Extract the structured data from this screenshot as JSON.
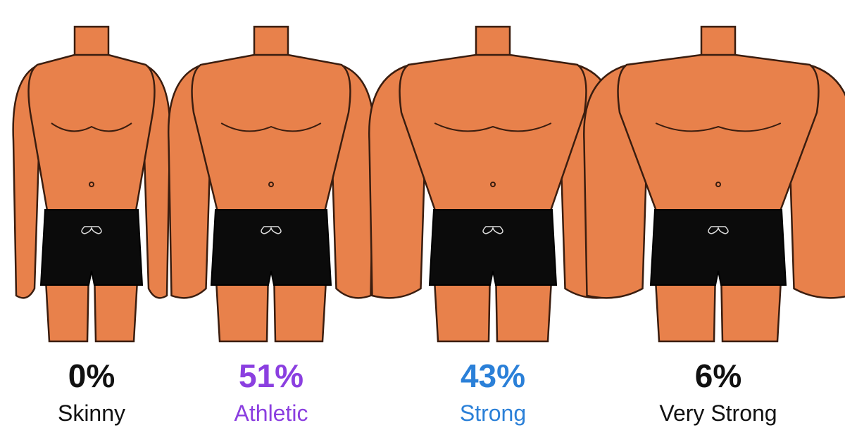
{
  "chart_data": {
    "type": "pictorial",
    "categories": [
      "Skinny",
      "Athletic",
      "Strong",
      "Very Strong"
    ],
    "values": [
      0,
      51,
      43,
      6
    ],
    "value_labels": [
      "0%",
      "51%",
      "43%",
      "6%"
    ],
    "colors": [
      "#111111",
      "#8b3fe0",
      "#2b80d8",
      "#111111"
    ]
  }
}
